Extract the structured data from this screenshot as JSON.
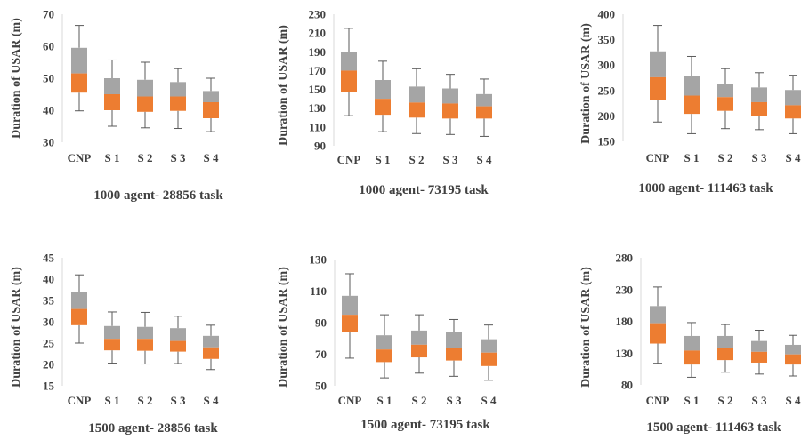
{
  "colors": {
    "upper_box": "#a5a5a5",
    "lower_box": "#ed7d31",
    "whisker": "#595959",
    "axis": "#d9d9d9",
    "text": "#404040"
  },
  "chart_data": [
    {
      "type": "box",
      "title": "1000 agent- 28856 task",
      "ylabel": "Duration of USAR (m)",
      "ylim": [
        30,
        70
      ],
      "yticks": [
        30,
        40,
        50,
        60,
        70
      ],
      "categories": [
        "CNP",
        "S 1",
        "S 2",
        "S 3",
        "S 4"
      ],
      "boxes": [
        {
          "min": 39.8,
          "q1": 45.5,
          "median": 51.5,
          "q3": 59.5,
          "max": 66.5
        },
        {
          "min": 35,
          "q1": 40,
          "median": 45,
          "q3": 50,
          "max": 55.7
        },
        {
          "min": 34.5,
          "q1": 39.5,
          "median": 44.3,
          "q3": 49.5,
          "max": 55
        },
        {
          "min": 34.3,
          "q1": 39.8,
          "median": 44.3,
          "q3": 48.8,
          "max": 53
        },
        {
          "min": 33.3,
          "q1": 37.5,
          "median": 42.5,
          "q3": 46,
          "max": 50
        }
      ]
    },
    {
      "type": "box",
      "title": "1000 agent- 73195 task",
      "ylabel": "Duration of USAR (m)",
      "ylim": [
        90,
        230
      ],
      "yticks": [
        90,
        110,
        130,
        150,
        170,
        190,
        210,
        230
      ],
      "categories": [
        "CNP",
        "S 1",
        "S 2",
        "S 3",
        "S 4"
      ],
      "boxes": [
        {
          "min": 122,
          "q1": 147,
          "median": 170,
          "q3": 190,
          "max": 215
        },
        {
          "min": 105,
          "q1": 123,
          "median": 140,
          "q3": 160,
          "max": 180
        },
        {
          "min": 103,
          "q1": 120,
          "median": 136,
          "q3": 153,
          "max": 172
        },
        {
          "min": 102,
          "q1": 119,
          "median": 135,
          "q3": 151,
          "max": 166
        },
        {
          "min": 100,
          "q1": 119,
          "median": 132,
          "q3": 145,
          "max": 161
        }
      ]
    },
    {
      "type": "box",
      "title": "1000 agent- 111463 task",
      "ylabel": "Duration of USAR (m)",
      "ylim": [
        150,
        400
      ],
      "yticks": [
        150,
        200,
        250,
        300,
        350,
        400
      ],
      "categories": [
        "CNP",
        "S 1",
        "S 2",
        "S 3",
        "S 4"
      ],
      "boxes": [
        {
          "min": 188,
          "q1": 232,
          "median": 276,
          "q3": 327,
          "max": 378
        },
        {
          "min": 165,
          "q1": 204,
          "median": 240,
          "q3": 279,
          "max": 317
        },
        {
          "min": 175,
          "q1": 210,
          "median": 237,
          "q3": 263,
          "max": 293
        },
        {
          "min": 173,
          "q1": 200,
          "median": 227,
          "q3": 256,
          "max": 285
        },
        {
          "min": 165,
          "q1": 195,
          "median": 221,
          "q3": 251,
          "max": 280
        }
      ]
    },
    {
      "type": "box",
      "title": "1500 agent- 28856 task",
      "ylabel": "Duration of USAR (m)",
      "ylim": [
        15,
        45
      ],
      "yticks": [
        15,
        20,
        25,
        30,
        35,
        40,
        45
      ],
      "categories": [
        "CNP",
        "S 1",
        "S 2",
        "S 3",
        "S 4"
      ],
      "boxes": [
        {
          "min": 25,
          "q1": 29.2,
          "median": 33,
          "q3": 37,
          "max": 41
        },
        {
          "min": 20.3,
          "q1": 23.3,
          "median": 26,
          "q3": 29,
          "max": 32.3
        },
        {
          "min": 20.1,
          "q1": 23.2,
          "median": 26,
          "q3": 28.8,
          "max": 32.2
        },
        {
          "min": 20.2,
          "q1": 23,
          "median": 25.5,
          "q3": 28.5,
          "max": 31.3
        },
        {
          "min": 18.8,
          "q1": 21.3,
          "median": 24,
          "q3": 26.7,
          "max": 29.2
        }
      ]
    },
    {
      "type": "box",
      "title": "1500 agent- 73195 task",
      "ylabel": "Duration of USAR (m)",
      "ylim": [
        50,
        130
      ],
      "yticks": [
        50,
        70,
        90,
        110,
        130
      ],
      "categories": [
        "CNP",
        "S 1",
        "S 2",
        "S 3",
        "S 4"
      ],
      "boxes": [
        {
          "min": 67.5,
          "q1": 84,
          "median": 95,
          "q3": 107,
          "max": 121
        },
        {
          "min": 55,
          "q1": 65,
          "median": 73,
          "q3": 82,
          "max": 95
        },
        {
          "min": 58,
          "q1": 68,
          "median": 76,
          "q3": 85,
          "max": 95
        },
        {
          "min": 56,
          "q1": 66,
          "median": 74,
          "q3": 84,
          "max": 92
        },
        {
          "min": 53.5,
          "q1": 62.5,
          "median": 71,
          "q3": 79.5,
          "max": 88.5
        }
      ]
    },
    {
      "type": "box",
      "title": "1500 agent- 111463 task",
      "ylabel": "Duration of USAR (m)",
      "ylim": [
        80,
        280
      ],
      "yticks": [
        80,
        130,
        180,
        230,
        280
      ],
      "categories": [
        "CNP",
        "S 1",
        "S 2",
        "S 3",
        "S 4"
      ],
      "boxes": [
        {
          "min": 114,
          "q1": 145,
          "median": 177,
          "q3": 204,
          "max": 234
        },
        {
          "min": 92,
          "q1": 112,
          "median": 134,
          "q3": 157,
          "max": 178
        },
        {
          "min": 100,
          "q1": 119,
          "median": 138,
          "q3": 157,
          "max": 175
        },
        {
          "min": 97,
          "q1": 115,
          "median": 132,
          "q3": 149,
          "max": 166
        },
        {
          "min": 94,
          "q1": 112,
          "median": 128,
          "q3": 143,
          "max": 158
        }
      ]
    }
  ]
}
